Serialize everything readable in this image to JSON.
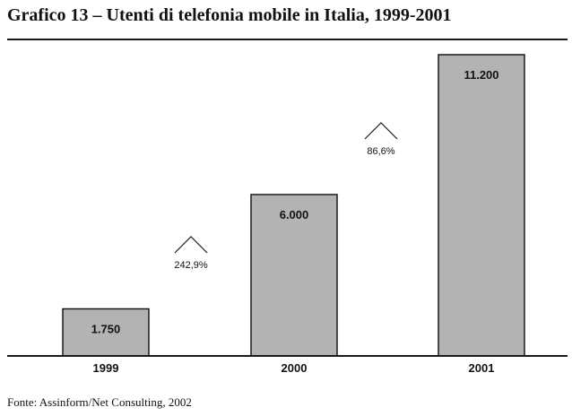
{
  "title": "Grafico 13 – Utenti di telefonia mobile in Italia, 1999-2001",
  "source": "Fonte: Assinform/Net Consulting, 2002",
  "colors": {
    "bar": "#b3b3b3",
    "bar_stroke": "#1a1a1a",
    "axis": "#1a1a1a",
    "text": "#111111"
  },
  "chart_data": {
    "type": "bar",
    "title": "Grafico 13 – Utenti di telefonia mobile in Italia, 1999-2001",
    "xlabel": "",
    "ylabel": "",
    "categories": [
      "1999",
      "2000",
      "2001"
    ],
    "values": [
      1750,
      6000,
      11200
    ],
    "value_labels": [
      "1.750",
      "6.000",
      "11.200"
    ],
    "growth_annotations": [
      {
        "from": "1999",
        "to": "2000",
        "label": "242,9%"
      },
      {
        "from": "2000",
        "to": "2001",
        "label": "86,6%"
      }
    ],
    "ylim": [
      0,
      12000
    ],
    "grid": false,
    "legend": "none"
  }
}
